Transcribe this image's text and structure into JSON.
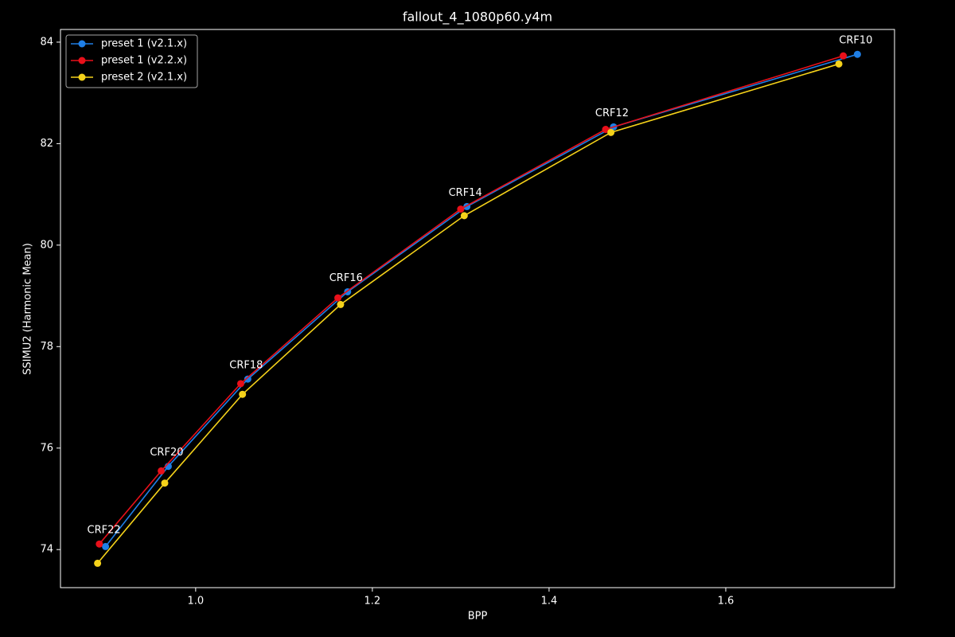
{
  "chart_data": {
    "type": "line",
    "title": "fallout_4_1080p60.y4m",
    "x_label": "BPP",
    "y_label": "SSIMU2 (Harmonic Mean)",
    "xlim": [
      0.847,
      1.791
    ],
    "ylim": [
      73.25,
      84.25
    ],
    "xticks": [
      {
        "value": 1,
        "label": "1.0"
      },
      1.2,
      1.4,
      1.6
    ],
    "yticks": [
      74,
      76,
      78,
      80,
      82,
      84
    ],
    "legend": "upper-left",
    "annotations": [
      "CRF22",
      "CRF20",
      "CRF18",
      "CRF16",
      "CRF14",
      "CRF12",
      "CRF10"
    ],
    "series": [
      {
        "name": "preset 1 (v2.1.x)",
        "color": "#1f7fe6",
        "x": [
          0.898,
          0.969,
          1.059,
          1.172,
          1.307,
          1.473,
          1.749
        ],
        "values": [
          74.06,
          75.64,
          77.36,
          79.08,
          80.76,
          82.33,
          83.76
        ]
      },
      {
        "name": "preset 1 (v2.2.x)",
        "color": "#e8101a",
        "x": [
          0.891,
          0.961,
          1.051,
          1.161,
          1.3,
          1.464,
          1.733
        ],
        "values": [
          74.11,
          75.55,
          77.27,
          78.96,
          80.71,
          82.28,
          83.73
        ]
      },
      {
        "name": "preset 2 (v2.1.x)",
        "color": "#f5d21a",
        "x": [
          0.889,
          0.965,
          1.053,
          1.164,
          1.304,
          1.47,
          1.728
        ],
        "values": [
          73.73,
          75.31,
          77.06,
          78.83,
          80.58,
          82.22,
          83.57
        ]
      }
    ]
  }
}
